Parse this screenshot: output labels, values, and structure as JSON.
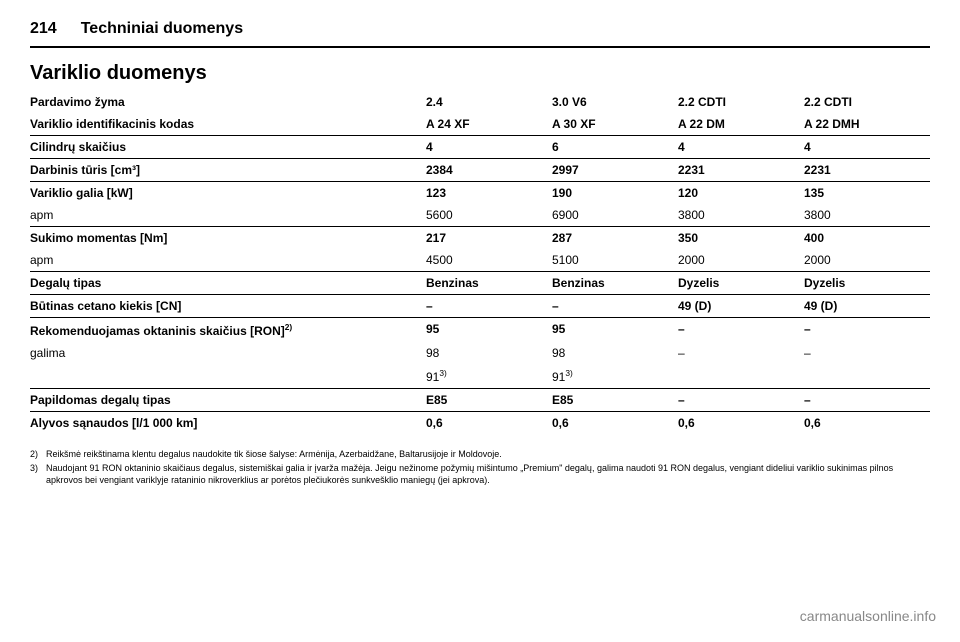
{
  "page_number": "214",
  "chapter_title": "Techniniai duomenys",
  "section_title": "Variklio duomenys",
  "table": {
    "label_col_width": "44%",
    "value_col_width": "14%",
    "rows": [
      {
        "label": "Pardavimo žyma",
        "v1": "2.4",
        "v2": "3.0 V6",
        "v3": "2.2 CDTI",
        "v4": "2.2 CDTI",
        "bold": true,
        "border": false
      },
      {
        "label": "Variklio identifikacinis kodas",
        "v1": "A 24 XF",
        "v2": "A 30 XF",
        "v3": "A 22 DM",
        "v4": "A 22 DMH",
        "bold": true,
        "border": false
      },
      {
        "label": "Cilindrų skaičius",
        "v1": "4",
        "v2": "6",
        "v3": "4",
        "v4": "4",
        "bold": true,
        "border": true
      },
      {
        "label": "Darbinis tūris [cm³]",
        "v1": "2384",
        "v2": "2997",
        "v3": "2231",
        "v4": "2231",
        "bold": true,
        "border": true
      },
      {
        "label": "Variklio galia [kW]",
        "v1": "123",
        "v2": "190",
        "v3": "120",
        "v4": "135",
        "bold": true,
        "border": true
      },
      {
        "label": "apm",
        "v1": "5600",
        "v2": "6900",
        "v3": "3800",
        "v4": "3800",
        "bold": false,
        "border": false
      },
      {
        "label": "Sukimo momentas [Nm]",
        "v1": "217",
        "v2": "287",
        "v3": "350",
        "v4": "400",
        "bold": true,
        "border": true
      },
      {
        "label": "apm",
        "v1": "4500",
        "v2": "5100",
        "v3": "2000",
        "v4": "2000",
        "bold": false,
        "border": false
      },
      {
        "label": "Degalų tipas",
        "v1": "Benzinas",
        "v2": "Benzinas",
        "v3": "Dyzelis",
        "v4": "Dyzelis",
        "bold": true,
        "border": true
      },
      {
        "label": "Būtinas cetano kiekis [CN]",
        "v1": "–",
        "v2": "–",
        "v3": "49 (D)",
        "v4": "49 (D)",
        "bold": true,
        "border": true
      },
      {
        "label": "Rekomenduojamas oktaninis skaičius [RON]²⁾",
        "v1": "95",
        "v2": "95",
        "v3": "–",
        "v4": "–",
        "bold": true,
        "border": true
      },
      {
        "label": "galima",
        "v1": "98",
        "v2": "98",
        "v3": "–",
        "v4": "–",
        "bold": false,
        "border": false
      },
      {
        "label": "",
        "v1": "91³⁾",
        "v2": "91³⁾",
        "v3": "",
        "v4": "",
        "bold": false,
        "border": false
      },
      {
        "label": "Papildomas degalų tipas",
        "v1": "E85",
        "v2": "E85",
        "v3": "–",
        "v4": "–",
        "bold": true,
        "border": true
      },
      {
        "label": "Alyvos sąnaudos [l/1 000 km]",
        "v1": "0,6",
        "v2": "0,6",
        "v3": "0,6",
        "v4": "0,6",
        "bold": true,
        "border": true
      }
    ]
  },
  "footnotes": [
    {
      "mark": "2)",
      "text": "Reikšmė reikštinama klentu degalus naudokite tik šiose šalyse: Armėnija, Azerbaidžane, Baltarusijoje ir Moldovoje."
    },
    {
      "mark": "3)",
      "text": "Naudojant 91 RON oktaninio skaičiaus degalus, sistemiškai galia ir įvarža mažėja. Jeigu nežinome požymių mišintumo „Premium\" degalų, galima naudoti 91 RON degalus, vengiant dideliui variklio sukinimas pilnos apkrovos bei vengiant variklyje rataninio nikroverklius ar porėtos plečiukorės sunkvešklio maniegų (jei apkrova)."
    }
  ],
  "watermark": "carmanualsonline.info",
  "colors": {
    "text": "#000000",
    "background": "#ffffff",
    "watermark": "#888888",
    "rule": "#000000"
  }
}
